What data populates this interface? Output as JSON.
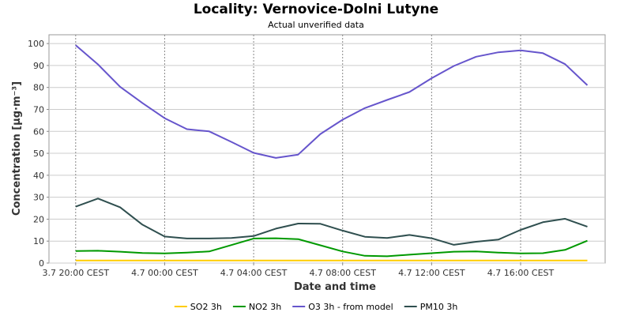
{
  "chart_data": {
    "type": "line",
    "title": "Locality: Vernovice-Dolni Lutyne",
    "subtitle": "Actual unverified data",
    "xlabel": "Date and time",
    "ylabel": "Concentration [µg·m⁻³]",
    "ylim": [
      0,
      104
    ],
    "y_ticks": [
      0,
      10,
      20,
      30,
      40,
      50,
      60,
      70,
      80,
      90,
      100
    ],
    "x_ticks": [
      {
        "h": 0,
        "label": "3.7 20:00 CEST"
      },
      {
        "h": 4,
        "label": "4.7 00:00 CEST"
      },
      {
        "h": 8,
        "label": "4.7 04:00 CEST"
      },
      {
        "h": 12,
        "label": "4.7 08:00 CEST"
      },
      {
        "h": 16,
        "label": "4.7 12:00 CEST"
      },
      {
        "h": 20,
        "label": "4.7 16:00 CEST"
      }
    ],
    "x_range": [
      -1.2,
      23.8
    ],
    "x": [
      0,
      1,
      2,
      3,
      4,
      5,
      6,
      7,
      8,
      9,
      10,
      11,
      12,
      13,
      14,
      15,
      16,
      17,
      18,
      19,
      20,
      21,
      22,
      23
    ],
    "grid": true,
    "legend_position": "bottom",
    "series": [
      {
        "name": "SO2 3h",
        "color": "#ffcc00",
        "values": [
          1.2,
          1.2,
          1.2,
          1.2,
          1.2,
          1.2,
          1.2,
          1.2,
          1.2,
          1.2,
          1.2,
          1.2,
          1.2,
          1.2,
          1.2,
          1.2,
          1.2,
          1.2,
          1.2,
          1.2,
          1.2,
          1.2,
          1.2,
          1.2
        ]
      },
      {
        "name": "NO2 3h",
        "color": "#009900",
        "values": [
          5.5,
          5.6,
          5.2,
          4.6,
          4.4,
          4.8,
          5.3,
          8.2,
          11.2,
          11.3,
          10.9,
          8.1,
          5.3,
          3.3,
          3.1,
          3.8,
          4.5,
          5.2,
          5.3,
          4.8,
          4.4,
          4.5,
          6.0,
          10.2
        ]
      },
      {
        "name": "O3 3h - from model",
        "color": "#6655cc",
        "values": [
          99.2,
          90.5,
          80.3,
          72.9,
          66.0,
          61.0,
          60.0,
          55.2,
          50.2,
          47.9,
          49.4,
          58.8,
          65.3,
          70.6,
          74.3,
          77.9,
          84.2,
          89.8,
          94.0,
          96.0,
          96.9,
          95.6,
          90.6,
          81.0
        ]
      },
      {
        "name": "PM10 3h",
        "color": "#2f4f4f",
        "values": [
          25.7,
          29.4,
          25.4,
          17.5,
          12.1,
          11.2,
          11.2,
          11.4,
          12.3,
          15.7,
          18.0,
          17.9,
          14.8,
          12.0,
          11.4,
          12.8,
          11.3,
          8.3,
          9.7,
          10.7,
          15.1,
          18.6,
          20.2,
          16.6
        ]
      }
    ]
  }
}
